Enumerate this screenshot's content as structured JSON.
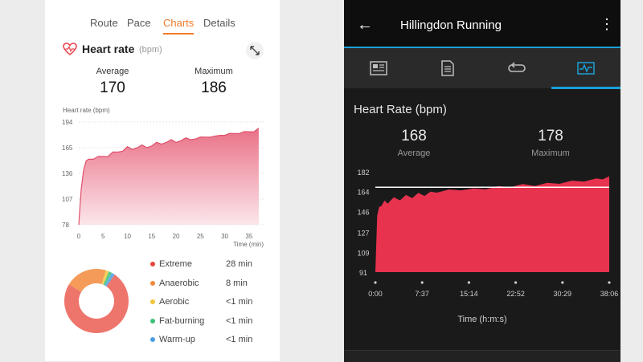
{
  "left_app": {
    "tabs": [
      {
        "label": "Route",
        "active": false
      },
      {
        "label": "Pace",
        "active": false
      },
      {
        "label": "Charts",
        "active": true
      },
      {
        "label": "Details",
        "active": false
      }
    ],
    "section_title": "Heart rate",
    "section_unit": "(bpm)",
    "stats": {
      "average_label": "Average",
      "average_value": "170",
      "maximum_label": "Maximum",
      "maximum_value": "186"
    },
    "accent_color": "#f07a2c",
    "chart_data": {
      "type": "area",
      "ylabel": "Heart rate (bpm)",
      "xlabel": "Time (min)",
      "y_ticks": [
        "194",
        "165",
        "136",
        "107",
        "78"
      ],
      "x_ticks": [
        "0",
        "5",
        "10",
        "15",
        "20",
        "25",
        "30",
        "35"
      ],
      "ylim": [
        78,
        194
      ],
      "xlim": [
        0,
        38
      ],
      "x": [
        0,
        0.5,
        1,
        1.5,
        2,
        3,
        4,
        5,
        6,
        7,
        8,
        9,
        10,
        11,
        12,
        13,
        14,
        15,
        16,
        17,
        18,
        19,
        20,
        21,
        22,
        23,
        24,
        25,
        26,
        27,
        28,
        29,
        30,
        31,
        32,
        33,
        34,
        35,
        36,
        37
      ],
      "values": [
        78,
        118,
        140,
        150,
        152,
        153,
        154,
        155,
        156,
        159,
        160,
        162,
        165,
        163,
        166,
        167,
        165,
        168,
        170,
        169,
        172,
        173,
        171,
        174,
        175,
        174,
        176,
        176,
        177,
        178,
        177,
        179,
        180,
        180,
        181,
        182,
        182,
        183,
        184,
        186
      ],
      "color": "#e8687f"
    },
    "zones_chart": {
      "type": "pie",
      "donut": true,
      "categories": [
        "Extreme",
        "Anaerobic",
        "Aerobic",
        "Fat-burning",
        "Warm-up"
      ],
      "labels": [
        "28 min",
        "8 min",
        "<1 min",
        "<1 min",
        "<1 min"
      ],
      "values": [
        28,
        8,
        0.6,
        0.6,
        0.6
      ],
      "colors": [
        "#e8473a",
        "#f28a3c",
        "#f2c53b",
        "#3cc27a",
        "#4a9de3"
      ]
    }
  },
  "right_app": {
    "title": "Hillingdon Running",
    "section_title": "Heart Rate (bpm)",
    "stats": {
      "average_value": "168",
      "average_label": "Average",
      "maximum_value": "178",
      "maximum_label": "Maximum"
    },
    "accent_color": "#1aa0d8",
    "icons": [
      "stats-icon",
      "document-icon",
      "laps-icon",
      "chart-icon"
    ],
    "active_icon": 3,
    "chart_data": {
      "type": "area",
      "xlabel": "Time (h:m:s)",
      "y_ticks": [
        "182",
        "164",
        "146",
        "127",
        "109",
        "91"
      ],
      "x_ticks": [
        "0:00",
        "7:37",
        "15:14",
        "22:52",
        "30:29",
        "38:06"
      ],
      "ylim": [
        91,
        182
      ],
      "x": [
        0,
        0.3,
        0.6,
        1,
        1.5,
        2,
        3,
        4,
        5,
        6,
        7,
        8,
        9,
        10,
        12,
        14,
        16,
        18,
        20,
        22,
        24,
        26,
        28,
        30,
        32,
        34,
        36,
        37,
        38.1
      ],
      "values": [
        91,
        142,
        150,
        152,
        155,
        154,
        158,
        157,
        160,
        159,
        162,
        161,
        163,
        164,
        165,
        166,
        166,
        167,
        168,
        169,
        170,
        170,
        171,
        172,
        173,
        174,
        175,
        176,
        177
      ],
      "average_line": 168,
      "color": "#e8334f"
    }
  }
}
